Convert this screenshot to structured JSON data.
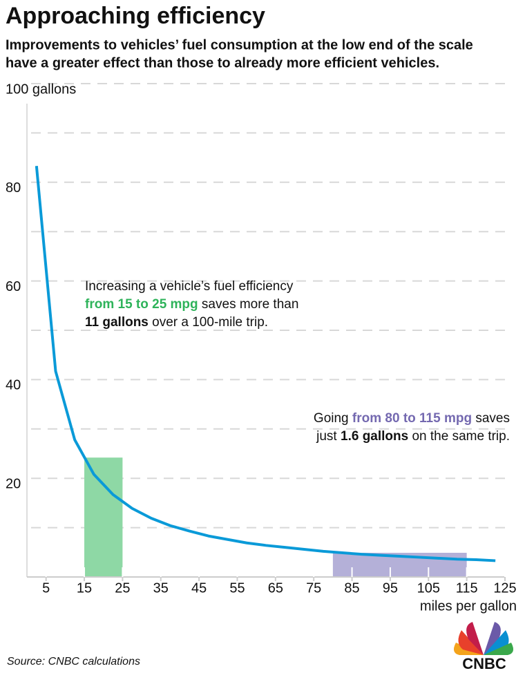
{
  "chart_data": {
    "type": "line",
    "title": "Approaching efficiency",
    "subtitle": [
      "Improvements to vehicles’ fuel consumption at the low end of the scale",
      "have a greater effect than those to already more efficient vehicles."
    ],
    "x_label": "miles per gallon",
    "source": "Source: CNBC calculations",
    "logo": "CNBC",
    "x": [
      2.5,
      7.5,
      12.5,
      17.5,
      22.5,
      27.5,
      32.5,
      37.5,
      42.5,
      47.5,
      52.5,
      57.5,
      62.5,
      67.5,
      72.5,
      77.5,
      82.5,
      87.5,
      92.5,
      97.5,
      102.5,
      107.5,
      112.5,
      117.5,
      122.5
    ],
    "series": [
      {
        "color": "#0a9ad8",
        "values": [
          83.3,
          41.7,
          27.8,
          20.8,
          16.7,
          13.9,
          11.9,
          10.4,
          9.3,
          8.3,
          7.6,
          6.9,
          6.4,
          6.0,
          5.6,
          5.2,
          4.9,
          4.6,
          4.4,
          4.2,
          4.0,
          3.8,
          3.6,
          3.5,
          3.3
        ]
      }
    ],
    "xlim": [
      0,
      125
    ],
    "xticks": [
      5,
      15,
      25,
      35,
      45,
      55,
      65,
      75,
      85,
      95,
      105,
      115,
      125
    ],
    "ylim": [
      0,
      100
    ],
    "yticks": [
      20,
      40,
      60,
      80,
      {
        "value": 100,
        "label": "100 gallons"
      }
    ],
    "ygrid": [
      10,
      20,
      30,
      40,
      50,
      60,
      70,
      80,
      90,
      100
    ],
    "grid": true,
    "highlights": [
      {
        "x": [
          15,
          25
        ],
        "top": 24.2,
        "color": "#8ed8a5"
      },
      {
        "x": [
          80,
          115
        ],
        "top": 4.9,
        "color": "#b4b0d8"
      }
    ],
    "annotations": [
      {
        "lines": [
          [
            {
              "text": "Increasing a vehicle’s fuel efficiency"
            }
          ],
          [
            {
              "text": "from 15 to 25 mpg",
              "bold": true,
              "color": "#2eb35a"
            },
            {
              "text": " saves more than"
            }
          ],
          [
            {
              "text": "11 gallons",
              "bold": true
            },
            {
              "text": " over a 100-mile trip."
            }
          ]
        ]
      },
      {
        "lines": [
          [
            {
              "text": "Going "
            },
            {
              "text": "from 80 to 115 mpg",
              "bold": true,
              "color": "#7469b0"
            },
            {
              "text": " saves"
            }
          ],
          [
            {
              "text": "just "
            },
            {
              "text": "1.6 gallons",
              "bold": true
            },
            {
              "text": " on the same trip."
            }
          ]
        ]
      }
    ]
  }
}
